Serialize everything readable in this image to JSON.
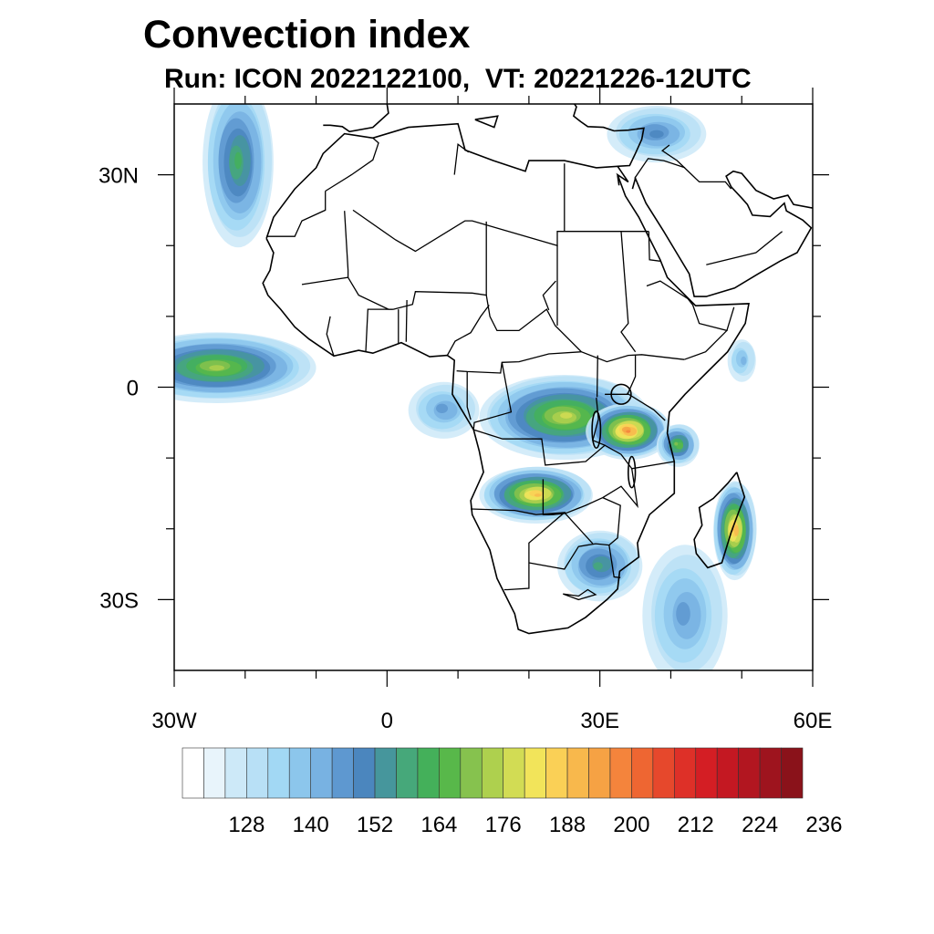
{
  "title": "Convection index",
  "subtitle": "Run: ICON 2022122100,  VT: 20221226-12UTC",
  "axes": {
    "lon_labels": [
      {
        "text": "30W",
        "lon": -30
      },
      {
        "text": "0",
        "lon": 0
      },
      {
        "text": "30E",
        "lon": 30
      },
      {
        "text": "60E",
        "lon": 60
      }
    ],
    "lat_labels": [
      {
        "text": "30N",
        "lat": 30
      },
      {
        "text": "0",
        "lat": 0
      },
      {
        "text": "30S",
        "lat": -30
      }
    ],
    "lon_range": [
      -30,
      60
    ],
    "lat_range": [
      -40,
      40
    ]
  },
  "colorbar": {
    "labels": [
      "128",
      "140",
      "152",
      "164",
      "176",
      "188",
      "200",
      "212",
      "224",
      "236"
    ],
    "colors": [
      "#ffffff",
      "#e8f4fb",
      "#cde9f8",
      "#b8e0f6",
      "#a2d8f4",
      "#8cc6ec",
      "#78b2e2",
      "#5e98d0",
      "#4b86be",
      "#46969c",
      "#46a87a",
      "#44b05a",
      "#58b84a",
      "#86c24e",
      "#aed04e",
      "#d2dc54",
      "#f2e45a",
      "#fad056",
      "#f8b84c",
      "#f6a244",
      "#f4843c",
      "#ee6632",
      "#e6482c",
      "#de3028",
      "#d41e24",
      "#c41822",
      "#b21620",
      "#9e141e",
      "#8a121a"
    ]
  },
  "convection_cells": [
    {
      "name": "nw-atlantic-band",
      "lon": -21,
      "lat": 32,
      "w": 5,
      "h": 12,
      "level": 10
    },
    {
      "name": "west-atlantic-eq",
      "lon": -24,
      "lat": 3,
      "w": 14,
      "h": 5,
      "level": 13
    },
    {
      "name": "congo-basin",
      "lon": 25,
      "lat": -4,
      "w": 12,
      "h": 6,
      "level": 14
    },
    {
      "name": "lake-victoria-east",
      "lon": 34,
      "lat": -6,
      "w": 6,
      "h": 4,
      "level": 19
    },
    {
      "name": "angola-zambia",
      "lon": 21,
      "lat": -15,
      "w": 8,
      "h": 4,
      "level": 17
    },
    {
      "name": "kenya-coast",
      "lon": 41,
      "lat": -8,
      "w": 3,
      "h": 3,
      "level": 12
    },
    {
      "name": "madagascar-east",
      "lon": 49,
      "lat": -20,
      "w": 3,
      "h": 7,
      "level": 18
    },
    {
      "name": "mozambique-channel-band",
      "lon": 42,
      "lat": -32,
      "w": 6,
      "h": 10,
      "level": 6
    },
    {
      "name": "south-africa-east",
      "lon": 30,
      "lat": -25,
      "w": 6,
      "h": 5,
      "level": 9
    },
    {
      "name": "ne-mediterranean",
      "lon": 38,
      "lat": 36,
      "w": 7,
      "h": 4,
      "level": 7
    },
    {
      "name": "somalia-offshore",
      "lon": 50,
      "lat": 4,
      "w": 2,
      "h": 3,
      "level": 5
    },
    {
      "name": "gabon-coast",
      "lon": 8,
      "lat": -3,
      "w": 5,
      "h": 4,
      "level": 6
    }
  ]
}
